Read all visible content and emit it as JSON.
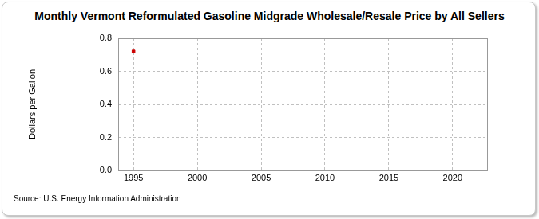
{
  "chart_data": {
    "type": "scatter",
    "title": "Monthly Vermont Reformulated Gasoline Midgrade Wholesale/Resale Price by All Sellers",
    "y_label": "Dollars per Gallon",
    "source": "Source: U.S. Energy Information Administration",
    "x": [
      1995
    ],
    "values": [
      0.72
    ],
    "color": "#cc0000",
    "marker": "square",
    "xlim": [
      1993.8,
      2022.7
    ],
    "xticks": [
      1995,
      2000,
      2005,
      2010,
      2015,
      2020
    ],
    "ylim": [
      0,
      0.8
    ],
    "yticks": [
      {
        "value": 0,
        "label": "0.0"
      },
      0.2,
      0.4,
      0.6,
      0.8
    ],
    "grid": true
  }
}
